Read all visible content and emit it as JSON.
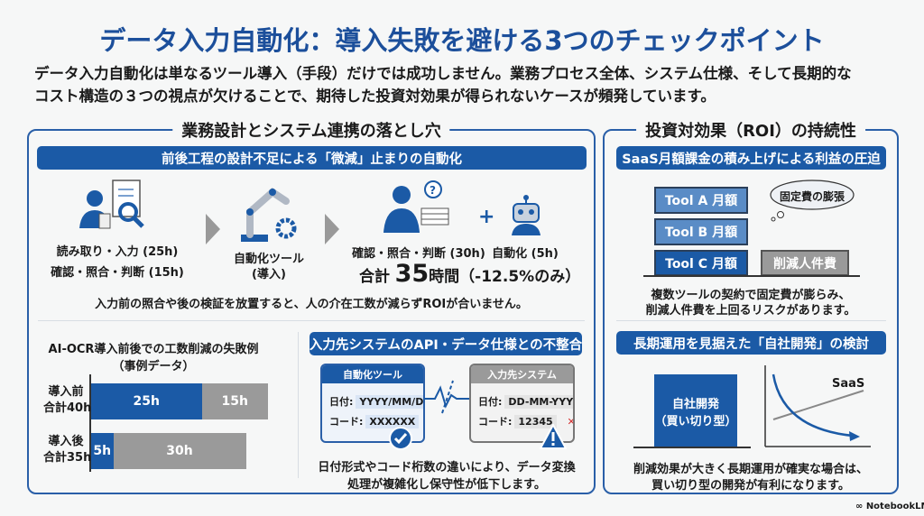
{
  "title": "データ入力自動化：導入失敗を避ける3つのチェックポイント",
  "intro": [
    "データ入力自動化は単なるツール導入（手段）だけでは成功しません。業務プロセス全体、システム仕様、そして長期的な",
    "コスト構造の３つの視点が欠けることで、期待した投資対効果が得られないケースが頻発しています。"
  ],
  "left": {
    "heading": "業務設計とシステム連携の落とし穴",
    "banner": "前後工程の設計不足による「微減」止まりの自動化",
    "step1": [
      "読み取り・入力 (25h)",
      "確認・照合・判断 (15h)"
    ],
    "step2": [
      "自動化ツール",
      "(導入)"
    ],
    "step3": {
      "human": "確認・照合・判断 (30h)",
      "plus": "+",
      "robot": "自動化 (5h)",
      "total_prefix": "合計",
      "total_num": "35",
      "total_suffix": "時間（-12.5%のみ）"
    },
    "note": "入力前の照合や後の検証を放置すると、人の介在工数が減らずROIが合いません。",
    "chart": {
      "title": [
        "AI-OCR導入前後での工数削減の失敗例",
        "（事例データ）"
      ]
    },
    "api": {
      "banner": "入力先システムのAPI・データ仕様との不整合",
      "tool": {
        "header": "自動化ツール",
        "date_label": "日付:",
        "date": "YYYY/MM/DD",
        "code_label": "コード:",
        "code": "XXXXXX",
        "mark": "✓"
      },
      "target": {
        "header": "入力先システム",
        "date_label": "日付:",
        "date": "DD-MM-YYYY",
        "code_label": "コード:",
        "code": "12345",
        "mark": "✕"
      },
      "caption": [
        "日付形式やコード桁数の違いにより、データ変換",
        "処理が複雑化し保守性が低下します。"
      ]
    }
  },
  "chart_data": {
    "type": "bar",
    "orientation": "horizontal",
    "stacked": true,
    "title": "AI-OCR導入前後での工数削減の失敗例（事例データ）",
    "categories": [
      "導入前\n合計40h",
      "導入後\n合計35h"
    ],
    "category_lines": [
      [
        "導入前",
        "合計40h"
      ],
      [
        "導入後",
        "合計35h"
      ]
    ],
    "series": [
      {
        "values": [
          25,
          5
        ],
        "labels": [
          "25h",
          "5h"
        ],
        "color": "#1b5aa6"
      },
      {
        "values": [
          15,
          30
        ],
        "labels": [
          "15h",
          "30h"
        ],
        "color": "#9a9a9a"
      }
    ],
    "xlim": [
      0,
      40
    ]
  },
  "right": {
    "heading": "投資対効果（ROI）の持続性",
    "banner1": "SaaS月額課金の積み上げによる利益の圧迫",
    "tools": [
      "Tool A 月額",
      "Tool B 月額",
      "Tool C 月額"
    ],
    "labor": "削減人件費",
    "cloud": "固定費の膨張",
    "text1": [
      "複数ツールの契約で固定費が膨らみ、",
      "削減人件費を上回るリスクがあります。"
    ],
    "banner2": "長期運用を見据えた「自社開発」の検討",
    "inhouse": [
      "自社開発",
      "（買い切り型）"
    ],
    "saas_label": "SaaS",
    "text2": [
      "削減効果が大きく長期運用が確実な場合は、",
      "買い切り型の開発が有利になります。"
    ]
  },
  "footer": "NotebookLM",
  "colors": {
    "accent": "#1b5aa6",
    "title": "#1c4f9b",
    "gray": "#9a9a9a",
    "error": "#d32f2f"
  }
}
